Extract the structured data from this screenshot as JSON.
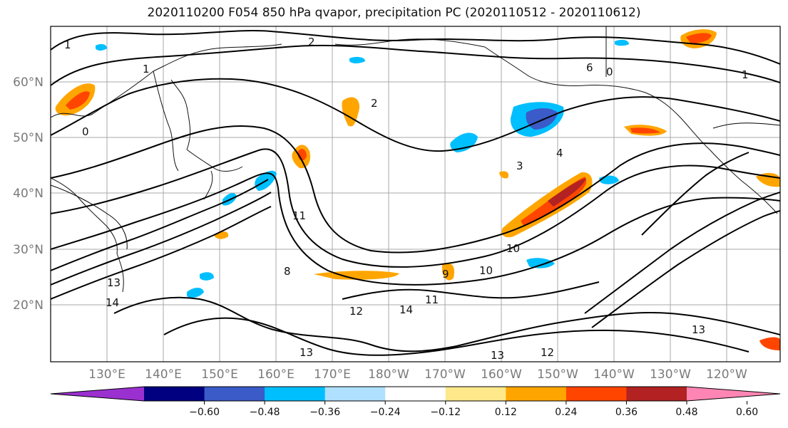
{
  "title": "2020110200 F054 850 hPa qvapor, precipitation PC (2020110512 - 2020110612)",
  "lat_labels": [
    "60°N",
    "50°N",
    "40°N",
    "30°N",
    "20°N"
  ],
  "lon_labels": [
    "130°E",
    "140°E",
    "150°E",
    "160°E",
    "170°E",
    "180°W",
    "170°W",
    "160°W",
    "150°W",
    "140°W",
    "130°W",
    "120°W"
  ],
  "colorbar": {
    "colors": [
      "#9b30d0",
      "#000080",
      "#3a5bc8",
      "#00bfff",
      "#b0e0ff",
      "#ffffff",
      "#ffe88a",
      "#ffa500",
      "#ff4500",
      "#b22222",
      "#ff86b4"
    ],
    "tick_labels": [
      "−0.60",
      "−0.48",
      "−0.36",
      "−0.24",
      "−0.12",
      "0.12",
      "0.24",
      "0.36",
      "0.48",
      "0.60"
    ]
  },
  "contour_labels": [
    "1",
    "2",
    "1",
    "0",
    "2",
    "4",
    "3",
    "6",
    "10",
    "11",
    "13",
    "14",
    "12",
    "13",
    "10",
    "11",
    "12",
    "13",
    "14",
    "8",
    "9",
    "13",
    "1",
    "0"
  ]
}
